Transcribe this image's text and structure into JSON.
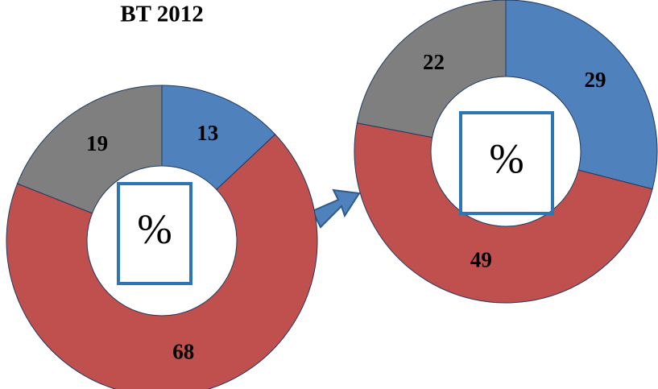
{
  "chart_data": [
    {
      "type": "donut",
      "title": "BT 2012",
      "center_label": "%",
      "values": [
        13,
        68,
        19
      ],
      "colors": [
        "#4f81bd",
        "#c0504d",
        "#7f7f7f"
      ]
    },
    {
      "type": "donut",
      "center_label": "%",
      "values": [
        29,
        49,
        22
      ],
      "colors": [
        "#4f81bd",
        "#c0504d",
        "#7f7f7f"
      ]
    }
  ]
}
